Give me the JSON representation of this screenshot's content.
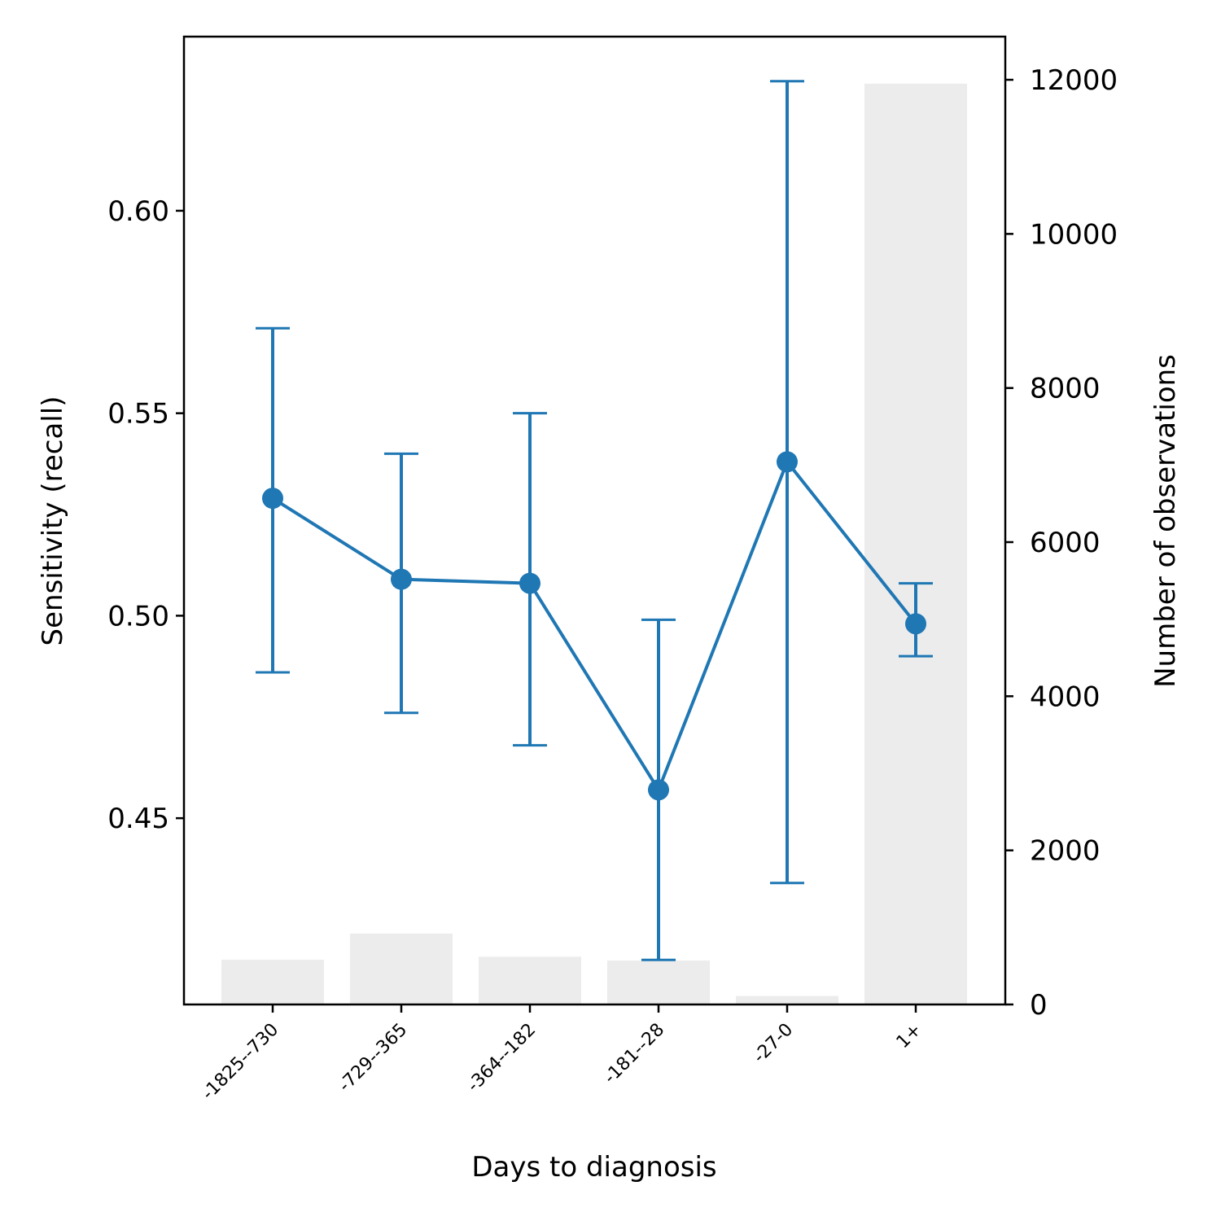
{
  "chart_data": {
    "type": "line",
    "xlabel": "Days to diagnosis",
    "ylabel": "Sensitivity (recall)",
    "y2label": "Number of observations",
    "categories": [
      "-1825--730",
      "-729--365",
      "-364--182",
      "-181--28",
      "-27-0",
      "1+"
    ],
    "series": [
      {
        "type": "line",
        "values": [
          0.529,
          0.509,
          0.508,
          0.457,
          0.538,
          0.498
        ],
        "error_lower": [
          0.486,
          0.476,
          0.468,
          0.415,
          0.434,
          0.49
        ],
        "error_upper": [
          0.571,
          0.54,
          0.55,
          0.499,
          0.632,
          0.508
        ],
        "color": "#1f77b4"
      },
      {
        "type": "bar",
        "axis": "right",
        "values": [
          580,
          920,
          620,
          570,
          110,
          11950
        ],
        "color": "#ececec"
      }
    ],
    "ylim": [
      0.404,
      0.643
    ],
    "yticks": [
      0.45,
      0.5,
      0.55,
      0.6
    ],
    "ytick_labels": [
      "0.45",
      "0.50",
      "0.55",
      "0.60"
    ],
    "y2lim": [
      0,
      12560
    ],
    "y2ticks": [
      0,
      2000,
      4000,
      6000,
      8000,
      10000,
      12000
    ],
    "y2tick_labels": [
      "0",
      "2000",
      "4000",
      "6000",
      "8000",
      "10000",
      "12000"
    ],
    "grid": false
  }
}
